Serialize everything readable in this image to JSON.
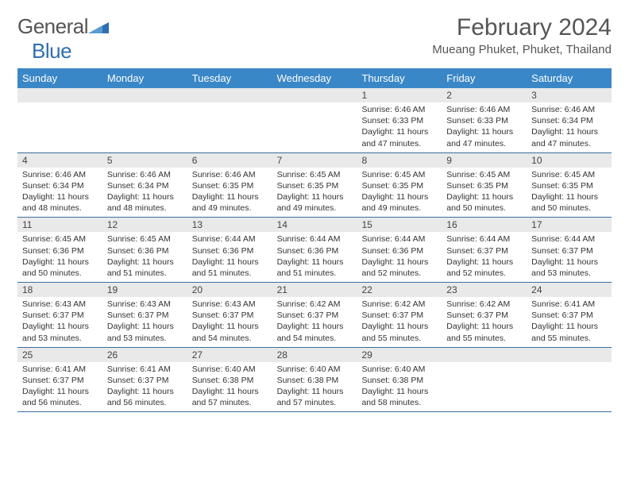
{
  "logo": {
    "text1": "General",
    "text2": "Blue"
  },
  "title": "February 2024",
  "subtitle": "Mueang Phuket, Phuket, Thailand",
  "colors": {
    "header_bg": "#3a87c8",
    "header_text": "#ffffff",
    "row_border": "#3a6e9e",
    "daynum_bg": "#e9e9e9",
    "logo_blue": "#2f6fb0",
    "logo_grey": "#555555"
  },
  "dayNames": [
    "Sunday",
    "Monday",
    "Tuesday",
    "Wednesday",
    "Thursday",
    "Friday",
    "Saturday"
  ],
  "weeks": [
    [
      null,
      null,
      null,
      null,
      {
        "n": "1",
        "sr": "6:46 AM",
        "ss": "6:33 PM",
        "dl": "11 hours and 47 minutes."
      },
      {
        "n": "2",
        "sr": "6:46 AM",
        "ss": "6:33 PM",
        "dl": "11 hours and 47 minutes."
      },
      {
        "n": "3",
        "sr": "6:46 AM",
        "ss": "6:34 PM",
        "dl": "11 hours and 47 minutes."
      }
    ],
    [
      {
        "n": "4",
        "sr": "6:46 AM",
        "ss": "6:34 PM",
        "dl": "11 hours and 48 minutes."
      },
      {
        "n": "5",
        "sr": "6:46 AM",
        "ss": "6:34 PM",
        "dl": "11 hours and 48 minutes."
      },
      {
        "n": "6",
        "sr": "6:46 AM",
        "ss": "6:35 PM",
        "dl": "11 hours and 49 minutes."
      },
      {
        "n": "7",
        "sr": "6:45 AM",
        "ss": "6:35 PM",
        "dl": "11 hours and 49 minutes."
      },
      {
        "n": "8",
        "sr": "6:45 AM",
        "ss": "6:35 PM",
        "dl": "11 hours and 49 minutes."
      },
      {
        "n": "9",
        "sr": "6:45 AM",
        "ss": "6:35 PM",
        "dl": "11 hours and 50 minutes."
      },
      {
        "n": "10",
        "sr": "6:45 AM",
        "ss": "6:35 PM",
        "dl": "11 hours and 50 minutes."
      }
    ],
    [
      {
        "n": "11",
        "sr": "6:45 AM",
        "ss": "6:36 PM",
        "dl": "11 hours and 50 minutes."
      },
      {
        "n": "12",
        "sr": "6:45 AM",
        "ss": "6:36 PM",
        "dl": "11 hours and 51 minutes."
      },
      {
        "n": "13",
        "sr": "6:44 AM",
        "ss": "6:36 PM",
        "dl": "11 hours and 51 minutes."
      },
      {
        "n": "14",
        "sr": "6:44 AM",
        "ss": "6:36 PM",
        "dl": "11 hours and 51 minutes."
      },
      {
        "n": "15",
        "sr": "6:44 AM",
        "ss": "6:36 PM",
        "dl": "11 hours and 52 minutes."
      },
      {
        "n": "16",
        "sr": "6:44 AM",
        "ss": "6:37 PM",
        "dl": "11 hours and 52 minutes."
      },
      {
        "n": "17",
        "sr": "6:44 AM",
        "ss": "6:37 PM",
        "dl": "11 hours and 53 minutes."
      }
    ],
    [
      {
        "n": "18",
        "sr": "6:43 AM",
        "ss": "6:37 PM",
        "dl": "11 hours and 53 minutes."
      },
      {
        "n": "19",
        "sr": "6:43 AM",
        "ss": "6:37 PM",
        "dl": "11 hours and 53 minutes."
      },
      {
        "n": "20",
        "sr": "6:43 AM",
        "ss": "6:37 PM",
        "dl": "11 hours and 54 minutes."
      },
      {
        "n": "21",
        "sr": "6:42 AM",
        "ss": "6:37 PM",
        "dl": "11 hours and 54 minutes."
      },
      {
        "n": "22",
        "sr": "6:42 AM",
        "ss": "6:37 PM",
        "dl": "11 hours and 55 minutes."
      },
      {
        "n": "23",
        "sr": "6:42 AM",
        "ss": "6:37 PM",
        "dl": "11 hours and 55 minutes."
      },
      {
        "n": "24",
        "sr": "6:41 AM",
        "ss": "6:37 PM",
        "dl": "11 hours and 55 minutes."
      }
    ],
    [
      {
        "n": "25",
        "sr": "6:41 AM",
        "ss": "6:37 PM",
        "dl": "11 hours and 56 minutes."
      },
      {
        "n": "26",
        "sr": "6:41 AM",
        "ss": "6:37 PM",
        "dl": "11 hours and 56 minutes."
      },
      {
        "n": "27",
        "sr": "6:40 AM",
        "ss": "6:38 PM",
        "dl": "11 hours and 57 minutes."
      },
      {
        "n": "28",
        "sr": "6:40 AM",
        "ss": "6:38 PM",
        "dl": "11 hours and 57 minutes."
      },
      {
        "n": "29",
        "sr": "6:40 AM",
        "ss": "6:38 PM",
        "dl": "11 hours and 58 minutes."
      },
      null,
      null
    ]
  ],
  "labels": {
    "sunrise": "Sunrise:",
    "sunset": "Sunset:",
    "daylight": "Daylight:"
  }
}
